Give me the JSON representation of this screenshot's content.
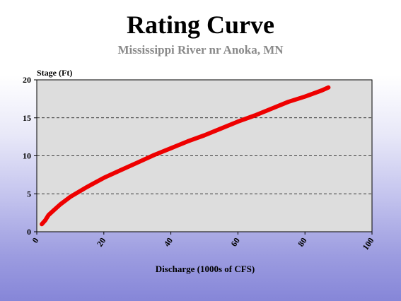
{
  "chart_data": {
    "type": "line",
    "title": "Rating Curve",
    "subtitle": "Mississippi River nr Anoka, MN",
    "xlabel": "Discharge (1000s of CFS)",
    "ylabel": "Stage (Ft)",
    "xlim": [
      0,
      100
    ],
    "ylim": [
      0,
      20
    ],
    "x_ticks": [
      0,
      20,
      40,
      60,
      80,
      100
    ],
    "y_ticks": [
      0,
      5,
      10,
      15,
      20
    ],
    "grid": "horizontal dashed at y = 5, 10, 15",
    "plot_background": "#dddddd",
    "series": [
      {
        "color": "#ee0000",
        "x": [
          1.5,
          2.5,
          3.5,
          5,
          7,
          10,
          15,
          20,
          25,
          30,
          35,
          40,
          45,
          50,
          55,
          60,
          65,
          70,
          75,
          80,
          85,
          87
        ],
        "y": [
          1.0,
          1.5,
          2.2,
          2.8,
          3.6,
          4.6,
          5.9,
          7.1,
          8.1,
          9.1,
          10.1,
          11.0,
          11.9,
          12.7,
          13.6,
          14.5,
          15.3,
          16.2,
          17.1,
          17.8,
          18.6,
          19.0
        ]
      }
    ]
  }
}
